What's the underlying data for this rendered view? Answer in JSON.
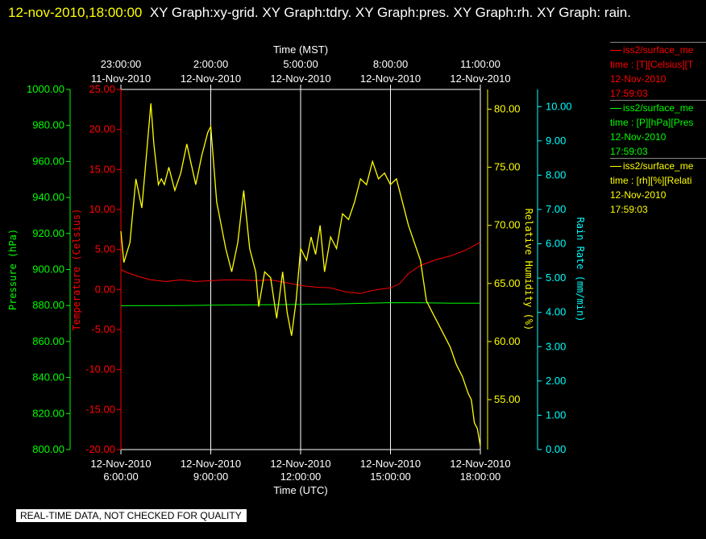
{
  "title": {
    "timestamp": "12-nov-2010,18:00:00",
    "text": "XY Graph:xy-grid.  XY Graph:tdry.  XY Graph:pres.  XY Graph:rh.  XY Graph: rain."
  },
  "footer_text": "REAL-TIME DATA, NOT CHECKED FOR QUALITY",
  "legend": [
    {
      "line1": "iss2/surface_me",
      "line2": "time : [T][Celsius][T",
      "line3": "12-Nov-2010",
      "line4": "17:59:03",
      "color": "#ff0000"
    },
    {
      "line1": "iss2/surface_me",
      "line2": "time : [P][hPa][Pres",
      "line3": "12-Nov-2010",
      "line4": "17:59:03",
      "color": "#00ff00"
    },
    {
      "line1": "iss2/surface_me",
      "line2": "time : [rh][%][Relati",
      "line3": "12-Nov-2010",
      "line4": "17:59:03",
      "color": "#ffff00"
    }
  ],
  "chart_data": {
    "type": "line",
    "grid": true,
    "x_top": {
      "label": "Time (MST)",
      "ticks": [
        {
          "time": "23:00:00",
          "date": "11-Nov-2010"
        },
        {
          "time": "2:00:00",
          "date": "12-Nov-2010"
        },
        {
          "time": "5:00:00",
          "date": "12-Nov-2010"
        },
        {
          "time": "8:00:00",
          "date": "12-Nov-2010"
        },
        {
          "time": "11:00:00",
          "date": "12-Nov-2010"
        }
      ]
    },
    "x_bottom": {
      "label": "Time (UTC)",
      "ticks": [
        {
          "date": "12-Nov-2010",
          "time": "6:00:00"
        },
        {
          "date": "12-Nov-2010",
          "time": "9:00:00"
        },
        {
          "date": "12-Nov-2010",
          "time": "12:00:00"
        },
        {
          "date": "12-Nov-2010",
          "time": "15:00:00"
        },
        {
          "date": "12-Nov-2010",
          "time": "18:00:00"
        }
      ],
      "range_hours_utc": [
        6,
        18
      ]
    },
    "axes": {
      "pressure": {
        "label": "Pressure (hPa)",
        "ylim": [
          800,
          1000
        ],
        "ticks": [
          "1000.00",
          "980.00",
          "960.00",
          "940.00",
          "920.00",
          "900.00",
          "880.00",
          "860.00",
          "840.00",
          "820.00",
          "800.00"
        ],
        "color": "#00ff00"
      },
      "temperature": {
        "label": "Temperature (Celsius)",
        "ylim": [
          -20,
          25
        ],
        "ticks": [
          "25.00",
          "20.00",
          "15.00",
          "10.00",
          "5.00",
          "0.00",
          "-5.00",
          "-10.00",
          "-15.00",
          "-20.00"
        ],
        "color": "#ff0000"
      },
      "humidity": {
        "label": "Relative Humidity (%)",
        "ylim": [
          50.7,
          81.7
        ],
        "ticks": [
          "80.00",
          "75.00",
          "70.00",
          "65.00",
          "60.00",
          "55.00"
        ],
        "color": "#ffff00"
      },
      "rain": {
        "label": "Rain Rate (mm/min)",
        "ylim": [
          0,
          10.5
        ],
        "ticks": [
          "10.00",
          "9.00",
          "8.00",
          "7.00",
          "6.00",
          "5.00",
          "4.00",
          "3.00",
          "2.00",
          "1.00",
          "0.00"
        ],
        "color": "#00ffff"
      }
    },
    "series": [
      {
        "name": "iss2/surface_me",
        "axis": "temperature",
        "color": "#ff0000",
        "x": [
          6.0,
          6.1,
          6.3,
          6.6,
          7.0,
          7.5,
          8.0,
          8.5,
          9.0,
          9.5,
          10.0,
          10.5,
          11.0,
          11.3,
          11.6,
          12.0,
          12.5,
          13.0,
          13.5,
          14.0,
          14.3,
          14.6,
          15.0,
          15.3,
          15.6,
          16.0,
          16.5,
          17.0,
          17.5,
          18.0
        ],
        "y": [
          2.5,
          2.3,
          2.0,
          1.6,
          1.2,
          1.0,
          1.2,
          1.0,
          1.1,
          1.2,
          1.2,
          1.1,
          1.2,
          1.0,
          0.8,
          0.5,
          0.3,
          0.2,
          -0.3,
          -0.5,
          -0.2,
          0.0,
          0.2,
          0.7,
          2.0,
          3.0,
          3.7,
          4.2,
          4.9,
          5.9
        ]
      },
      {
        "name": "iss2/surface_me",
        "axis": "pressure",
        "color": "#00ff00",
        "x": [
          6.0,
          8.0,
          10.0,
          12.0,
          13.0,
          14.0,
          15.0,
          16.0,
          17.0,
          18.0
        ],
        "y": [
          879.9,
          880.0,
          880.3,
          880.6,
          880.8,
          881.2,
          881.6,
          881.5,
          881.3,
          881.3
        ]
      },
      {
        "name": "iss2/surface_me",
        "axis": "humidity",
        "color": "#ffff00",
        "x": [
          6.0,
          6.1,
          6.3,
          6.5,
          6.7,
          6.9,
          7.0,
          7.1,
          7.25,
          7.35,
          7.45,
          7.6,
          7.8,
          8.0,
          8.2,
          8.5,
          8.7,
          8.9,
          9.0,
          9.2,
          9.5,
          9.7,
          9.9,
          10.1,
          10.3,
          10.5,
          10.6,
          10.8,
          11.0,
          11.2,
          11.4,
          11.55,
          11.7,
          11.85,
          12.0,
          12.2,
          12.35,
          12.5,
          12.65,
          12.8,
          13.0,
          13.2,
          13.4,
          13.6,
          13.8,
          14.0,
          14.2,
          14.4,
          14.6,
          14.8,
          15.0,
          15.2,
          15.4,
          15.6,
          15.8,
          16.0,
          16.2,
          16.4,
          16.6,
          16.8,
          17.0,
          17.2,
          17.4,
          17.6,
          17.7,
          17.8,
          17.9,
          18.0
        ],
        "y": [
          69.5,
          66.8,
          68.5,
          74.0,
          71.5,
          77.5,
          80.5,
          77.0,
          73.5,
          74.0,
          73.5,
          75.0,
          73.0,
          74.5,
          77.0,
          73.5,
          76.0,
          78.0,
          78.5,
          72.0,
          68.0,
          66.0,
          68.5,
          73.0,
          68.0,
          66.0,
          63.0,
          66.0,
          65.5,
          62.0,
          66.0,
          62.5,
          60.5,
          63.5,
          68.0,
          67.0,
          69.0,
          67.5,
          70.0,
          66.0,
          69.0,
          68.0,
          71.0,
          70.5,
          72.0,
          74.0,
          73.5,
          75.5,
          74.0,
          74.5,
          73.5,
          74.0,
          72.0,
          70.0,
          68.5,
          67.0,
          63.5,
          62.5,
          61.5,
          60.5,
          59.5,
          58.0,
          57.0,
          55.5,
          55.0,
          53.0,
          52.5,
          51.0
        ]
      }
    ]
  }
}
